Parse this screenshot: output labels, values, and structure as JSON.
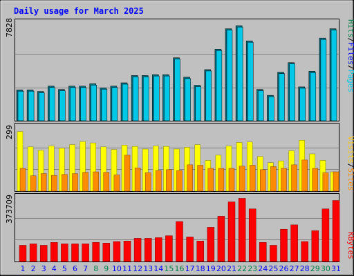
{
  "chart_data": [
    {
      "type": "bar",
      "title": "Daily usage for March 2025",
      "categories": [
        "1",
        "2",
        "3",
        "4",
        "5",
        "6",
        "7",
        "8",
        "9",
        "10",
        "11",
        "12",
        "13",
        "14",
        "15",
        "16",
        "17",
        "18",
        "19",
        "20",
        "21",
        "22",
        "23",
        "24",
        "25",
        "26",
        "27",
        "28",
        "29",
        "30",
        "31"
      ],
      "weekend_days": [
        "8",
        "9",
        "15",
        "16",
        "22",
        "23",
        "29",
        "30"
      ],
      "ymax_label": "7828",
      "ylim": [
        0,
        7828
      ],
      "right_label": {
        "parts": [
          "Pages",
          "/",
          "Files",
          "/",
          "Hits"
        ]
      },
      "series": [
        {
          "name": "Pages",
          "values": [
            2420,
            2420,
            2290,
            2710,
            2450,
            2710,
            2710,
            2900,
            2580,
            2710,
            2970,
            3540,
            3540,
            3610,
            3610,
            4930,
            3410,
            2780,
            4000,
            5600,
            7200,
            7440,
            6250,
            2450,
            1990,
            3800,
            4550,
            2650,
            3870,
            6470,
            7200
          ]
        },
        {
          "name": "Hits",
          "values": [
            2420,
            2420,
            2290,
            2710,
            2450,
            2710,
            2710,
            2900,
            2580,
            2710,
            2970,
            3540,
            3540,
            3610,
            3610,
            4930,
            3410,
            2780,
            4000,
            5600,
            7200,
            7440,
            6250,
            2450,
            1990,
            3800,
            4550,
            2650,
            3870,
            6470,
            7200
          ]
        }
      ],
      "colors": {
        "Pages": "#00c8e6",
        "Hits": "#006e82"
      }
    },
    {
      "type": "bar",
      "ymax_label": "299",
      "ylim": [
        0,
        299
      ],
      "right_label": {
        "parts": [
          "Sites",
          "/",
          "Visits"
        ]
      },
      "series": [
        {
          "name": "Visits",
          "values": [
            272,
            202,
            186,
            206,
            196,
            212,
            226,
            220,
            202,
            190,
            210,
            204,
            192,
            206,
            204,
            192,
            200,
            212,
            140,
            164,
            206,
            222,
            224,
            158,
            130,
            138,
            184,
            232,
            170,
            140,
            88
          ]
        },
        {
          "name": "Sites",
          "values": [
            104,
            70,
            80,
            72,
            76,
            80,
            86,
            88,
            86,
            74,
            164,
            106,
            84,
            94,
            98,
            94,
            120,
            118,
            104,
            104,
            104,
            114,
            118,
            98,
            112,
            104,
            120,
            142,
            104,
            84,
            88
          ]
        }
      ],
      "colors": {
        "Visits": "#ffff00",
        "Sites": "#ff8c00"
      }
    },
    {
      "type": "bar",
      "ymax_label": "373709",
      "ylim": [
        0,
        373709
      ],
      "right_label": {
        "parts": [
          "KBytes"
        ]
      },
      "series": [
        {
          "name": "KBytes",
          "values": [
            92500,
            100700,
            92500,
            108800,
            100700,
            100700,
            100700,
            108800,
            105000,
            114000,
            117000,
            132000,
            132000,
            136000,
            147000,
            228000,
            140000,
            117000,
            195000,
            258000,
            340000,
            360000,
            300000,
            108800,
            92500,
            184000,
            209000,
            114000,
            176000,
            300000,
            348000
          ]
        }
      ],
      "colors": {
        "KBytes": "#ff0000"
      }
    }
  ],
  "colors": {
    "background": "#c0c0c0",
    "title": "#0000ff",
    "label_default": "#0000ff",
    "label_weekend": "#00804a",
    "label_pages": "#00c8e6",
    "label_files": "#0000ff",
    "label_hits": "#00804a",
    "label_sites": "#ff8c00",
    "label_visits": "#ffc800",
    "label_kbytes": "#ff0000"
  }
}
